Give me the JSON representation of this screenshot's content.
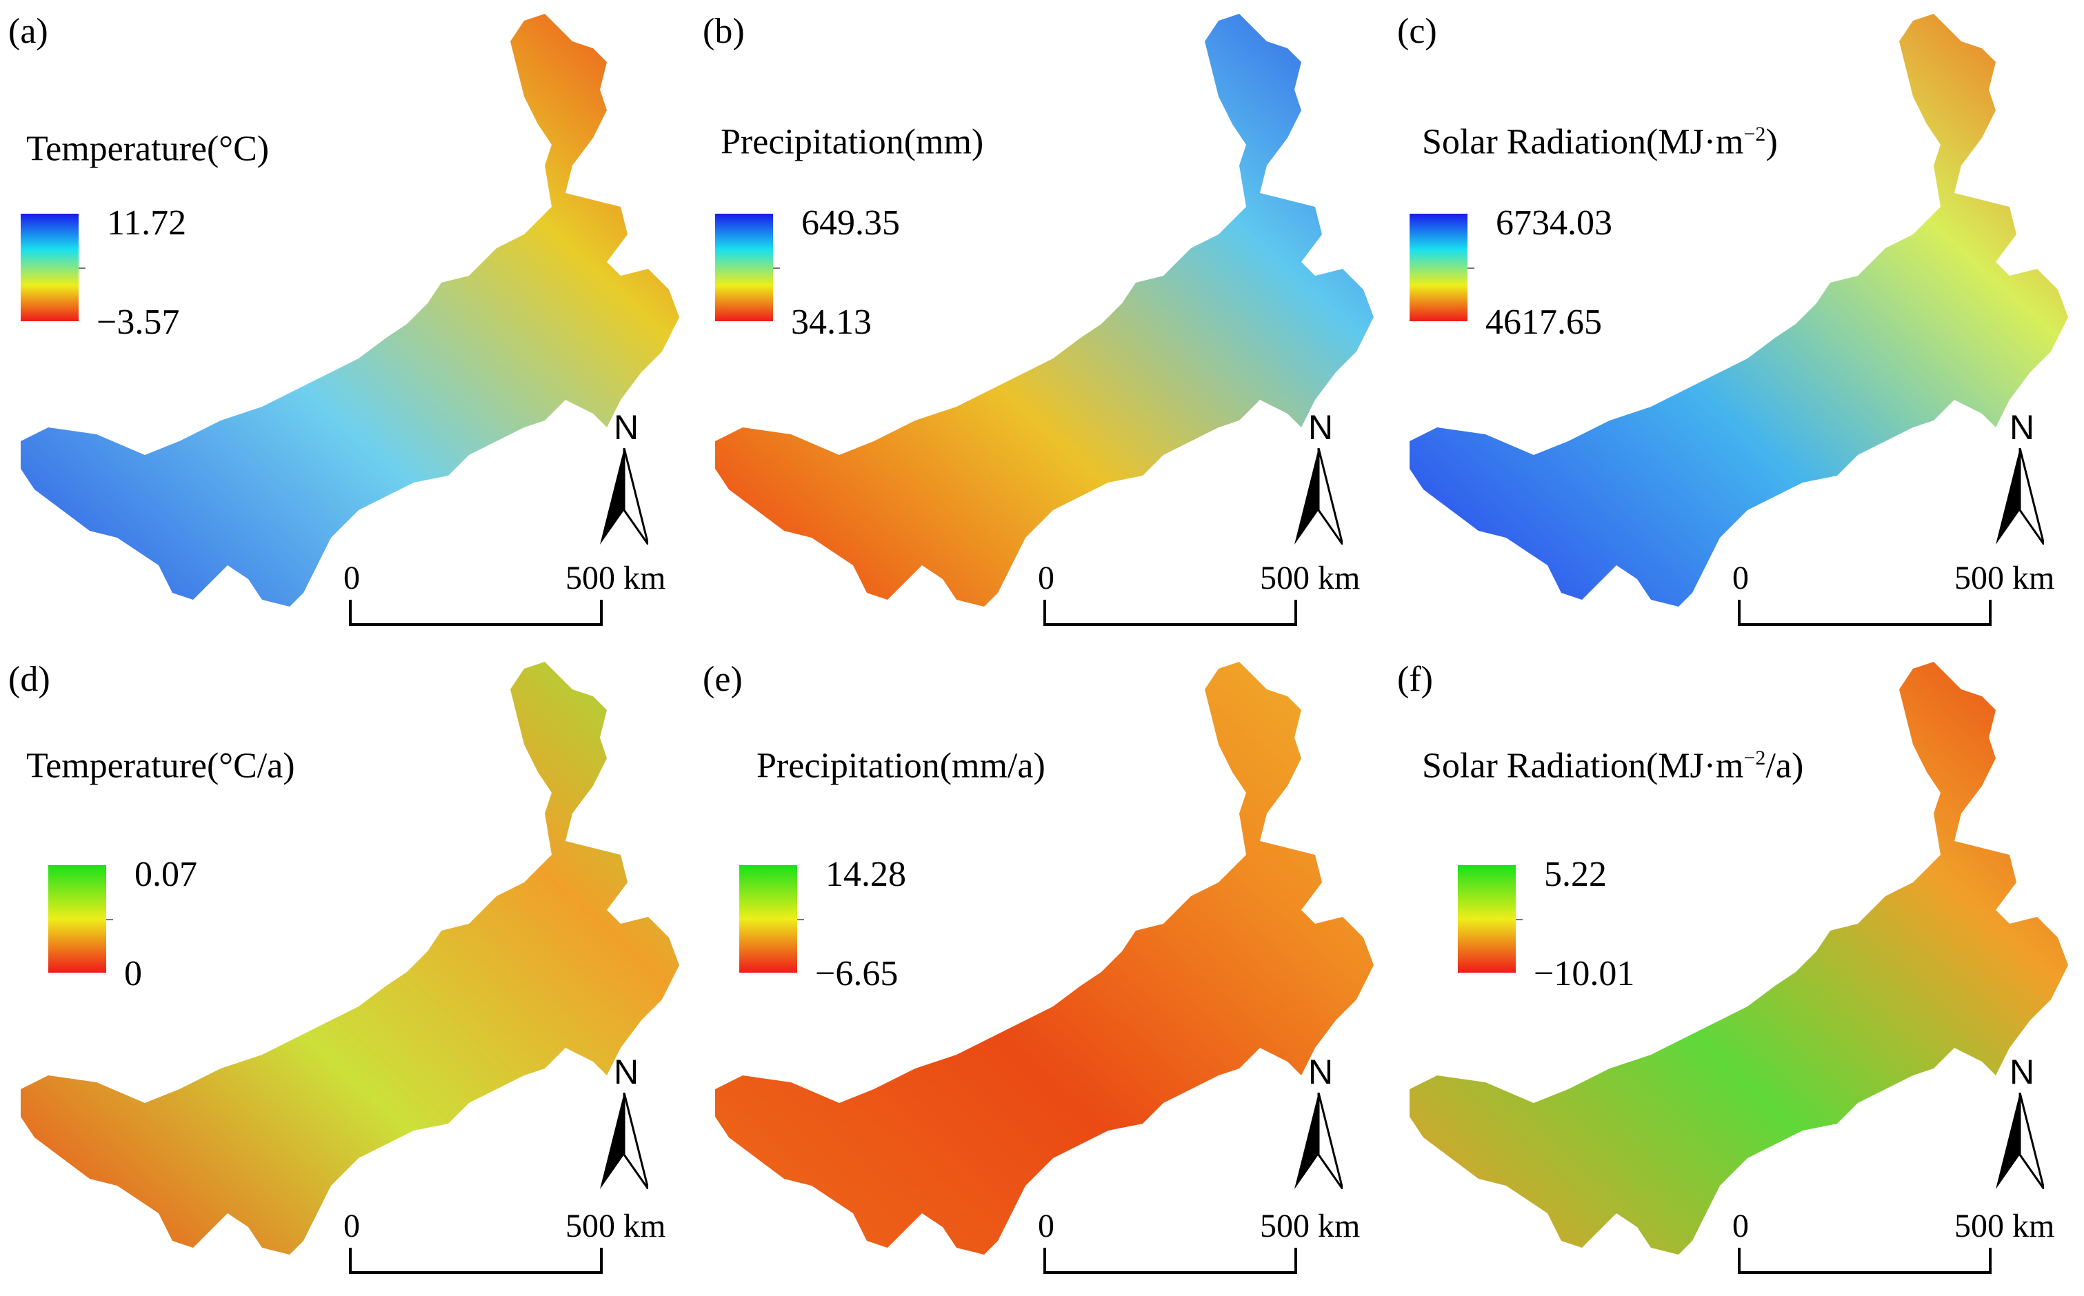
{
  "panels": [
    {
      "label": "(a)",
      "title": "Temperature(°C)",
      "title_sup": "",
      "title_suffix": "",
      "legend_max": "11.72",
      "legend_min": "−3.57",
      "colormap": "blue-cyan-yellow-red",
      "map_colors": {
        "west": "#2a58e6",
        "center": "#6fd0ee",
        "east": "#e8cc2a",
        "north": "#ee4a1a"
      }
    },
    {
      "label": "(b)",
      "title": "Precipitation(mm)",
      "title_sup": "",
      "title_suffix": "",
      "legend_max": "649.35",
      "legend_min": "34.13",
      "colormap": "blue-cyan-yellow-red",
      "map_colors": {
        "west": "#ee3a12",
        "center": "#ecc22a",
        "east": "#5ec8ee",
        "north": "#2f5fe8"
      }
    },
    {
      "label": "(c)",
      "title": "Solar Radiation(MJ·m",
      "title_sup": "−2",
      "title_suffix": ")",
      "legend_max": "6734.03",
      "legend_min": "4617.65",
      "colormap": "blue-cyan-yellow-red",
      "map_colors": {
        "west": "#2a40ec",
        "center": "#44b4ee",
        "east": "#d8ee5a",
        "north": "#f06a1a"
      }
    },
    {
      "label": "(d)",
      "title": "Temperature(°C/a)",
      "title_sup": "",
      "title_suffix": "",
      "legend_max": "0.07",
      "legend_min": "0",
      "colormap": "green-yellow-red",
      "map_colors": {
        "west": "#ee4a1a",
        "center": "#cce03a",
        "east": "#f0a02a",
        "north": "#9ee03a"
      }
    },
    {
      "label": "(e)",
      "title": "Precipitation(mm/a)",
      "title_sup": "",
      "title_suffix": "",
      "legend_max": "14.28",
      "legend_min": "−6.65",
      "colormap": "green-yellow-red",
      "map_colors": {
        "west": "#ee6a1a",
        "center": "#ea4a14",
        "east": "#f08a22",
        "north": "#f0b02a"
      }
    },
    {
      "label": "(f)",
      "title": "Solar Radiation(MJ·m",
      "title_sup": "−2",
      "title_suffix": "/a)",
      "legend_max": "5.22",
      "legend_min": "−10.01",
      "colormap": "green-yellow-red",
      "map_colors": {
        "west": "#f09a2a",
        "center": "#5ed83a",
        "east": "#f0a02a",
        "north": "#ea4a14"
      }
    }
  ],
  "north_label": "N",
  "scale": {
    "start": "0",
    "end": "500 km"
  },
  "colors": {
    "blue-cyan-yellow-red": [
      "#1a1aee",
      "#1ae0ee",
      "#eeee1a",
      "#ee1a1a"
    ],
    "green-yellow-red": [
      "#1ae01a",
      "#eeee1a",
      "#ee1a1a"
    ]
  }
}
